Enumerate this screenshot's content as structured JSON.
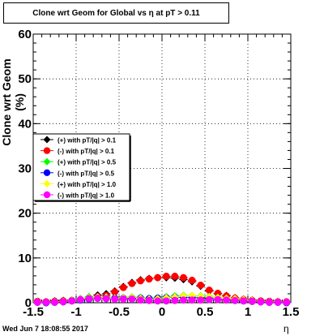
{
  "chart_data": {
    "type": "scatter",
    "title": "Clone wrt Geom for Global vs   η at pT > 0.11",
    "xlabel": "η",
    "ylabel": "Clone wrt Geom (%)",
    "xlim": [
      -1.5,
      1.5
    ],
    "ylim": [
      0,
      60
    ],
    "xticks": [
      "-1.5",
      "-1",
      "-0.5",
      "0",
      "0.5",
      "1",
      "1.5"
    ],
    "yticks": [
      "0",
      "10",
      "20",
      "30",
      "40",
      "50",
      "60"
    ],
    "grid": true,
    "legend_position": "left-middle",
    "x": [
      -1.45,
      -1.35,
      -1.25,
      -1.15,
      -1.05,
      -0.95,
      -0.85,
      -0.75,
      -0.65,
      -0.55,
      -0.45,
      -0.35,
      -0.25,
      -0.15,
      -0.05,
      0.05,
      0.15,
      0.25,
      0.35,
      0.45,
      0.55,
      0.65,
      0.75,
      0.85,
      0.95,
      1.05,
      1.15,
      1.25,
      1.35,
      1.45
    ],
    "series": [
      {
        "name": "(+) with pT/|q| > 0.1",
        "color": "#000000",
        "values": [
          0.3,
          0.2,
          0.4,
          0.5,
          0.6,
          0.9,
          1.3,
          1.7,
          2.0,
          2.6,
          3.6,
          4.5,
          5.1,
          5.4,
          5.6,
          5.6,
          5.5,
          5.2,
          4.7,
          3.7,
          2.6,
          2.0,
          1.6,
          1.1,
          0.8,
          0.6,
          0.4,
          0.3,
          0.3,
          0.2
        ]
      },
      {
        "name": "(-) with pT/|q| > 0.1",
        "color": "#ff0000",
        "values": [
          0.3,
          0.2,
          0.3,
          0.4,
          0.5,
          0.7,
          1.0,
          1.3,
          1.6,
          2.4,
          3.4,
          4.3,
          4.9,
          5.3,
          5.6,
          5.9,
          5.9,
          5.6,
          5.0,
          3.9,
          2.8,
          2.1,
          1.5,
          1.0,
          0.7,
          0.5,
          0.4,
          0.3,
          0.2,
          0.2
        ]
      },
      {
        "name": "(+) with pT/|q| > 0.5",
        "color": "#00ff00",
        "values": [
          0.1,
          0.1,
          0.2,
          0.3,
          0.6,
          0.9,
          1.3,
          1.2,
          1.3,
          1.1,
          1.2,
          1.3,
          1.2,
          1.0,
          1.1,
          1.3,
          1.5,
          1.6,
          1.6,
          1.5,
          1.4,
          1.2,
          1.0,
          0.8,
          0.6,
          0.4,
          0.3,
          0.2,
          0.2,
          0.1
        ]
      },
      {
        "name": "(-) with pT/|q| > 0.5",
        "color": "#0000ff",
        "values": [
          0.1,
          0.0,
          0.1,
          0.2,
          0.4,
          0.6,
          0.8,
          1.0,
          1.1,
          1.0,
          1.0,
          1.0,
          1.0,
          0.9,
          1.0,
          1.1,
          1.2,
          1.2,
          1.1,
          1.1,
          1.0,
          0.8,
          0.7,
          0.5,
          0.4,
          0.3,
          0.2,
          0.1,
          0.1,
          0.0
        ]
      },
      {
        "name": "(+) with pT/|q| > 1.0",
        "color": "#ffff00",
        "values": [
          0.2,
          0.1,
          0.2,
          0.3,
          0.5,
          0.8,
          1.1,
          1.3,
          1.2,
          1.0,
          1.1,
          1.2,
          1.0,
          0.8,
          0.9,
          1.1,
          1.3,
          1.5,
          1.6,
          1.4,
          1.3,
          1.1,
          1.0,
          0.9,
          0.7,
          0.5,
          0.3,
          0.2,
          0.2,
          0.1
        ]
      },
      {
        "name": "(-) with pT/|q| > 1.0",
        "color": "#ff00ff",
        "values": [
          0.1,
          0.1,
          0.1,
          0.2,
          0.4,
          0.7,
          0.9,
          1.0,
          0.9,
          0.8,
          0.8,
          0.8,
          0.6,
          0.5,
          0.4,
          0.4,
          0.5,
          0.6,
          0.6,
          0.6,
          0.7,
          0.7,
          0.6,
          0.5,
          0.4,
          0.3,
          0.2,
          0.1,
          0.1,
          0.1
        ]
      }
    ]
  },
  "footer": {
    "datestamp": "Wed Jun  7 18:08:55 2017"
  }
}
